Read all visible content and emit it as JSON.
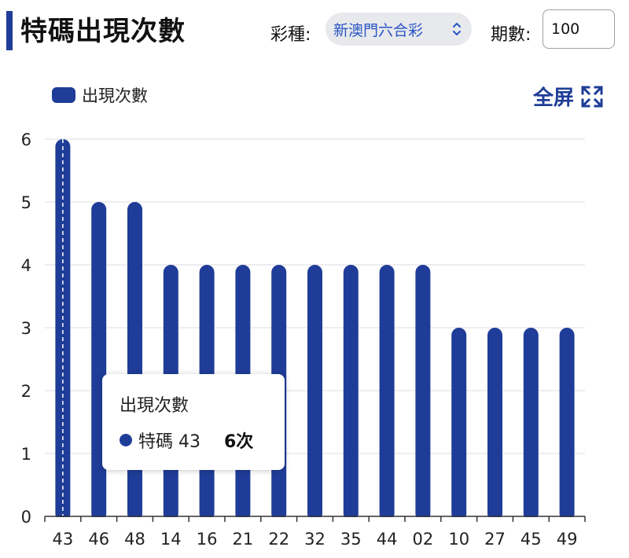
{
  "header": {
    "title": "特碼出現次數",
    "type_label": "彩種:",
    "type_value": "新澳門六合彩",
    "period_label": "期數:",
    "period_value": "100"
  },
  "toolbar": {
    "fullscreen_label": "全屏"
  },
  "tooltip": {
    "title": "出現次數",
    "series_label": "特碼 43",
    "value": "6次"
  },
  "colors": {
    "bar": "#1f3d98",
    "accent": "#1f3d98"
  },
  "chart_data": {
    "type": "bar",
    "categories": [
      "43",
      "46",
      "48",
      "14",
      "16",
      "21",
      "22",
      "32",
      "35",
      "44",
      "02",
      "10",
      "27",
      "45",
      "49"
    ],
    "series": [
      {
        "name": "出現次數",
        "values": [
          6,
          5,
          5,
          4,
          4,
          4,
          4,
          4,
          4,
          4,
          4,
          3,
          3,
          3,
          3
        ]
      }
    ],
    "ylim": [
      0,
      6
    ],
    "yticks": [
      0,
      1,
      2,
      3,
      4,
      5,
      6
    ],
    "legend": "top-left",
    "grid": true
  }
}
